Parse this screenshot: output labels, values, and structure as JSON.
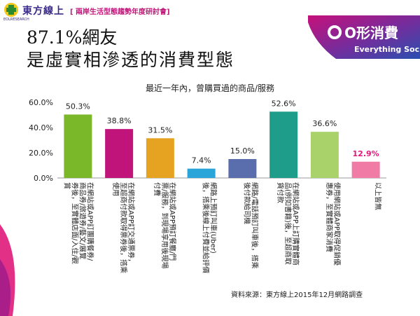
{
  "header": {
    "brand": "東方線上",
    "event": "[ 兩岸生活型態趨勢年度研討會]",
    "brand_small": "EOLRESEARCH"
  },
  "slide": {
    "title_line1": "87.1%網友",
    "title_line2": "是虛實相滲透的消費型態",
    "badge_main": "O形消費",
    "badge_sub": "Everything Social",
    "source": "資料來源：東方線上2015年12月網路調查"
  },
  "colors": {
    "accent_pink": "#e0197a",
    "brand_purple": "#3a2a8a",
    "highlight_label": "#e0197a"
  },
  "chart_data": {
    "type": "bar",
    "title": "最近一年內，曾購買過的商品/服務",
    "categories": [
      "在網站或APP訂團購餐券/商品券/旅遊券/藝文/展覽券後，至實體店面/入住/觀賞",
      "在網站或APP訂交通票券，至超商付款取得票券後，搭乘使用",
      "在網站或APP預訂餐廳/門票/服務，到現場享用後現場付費",
      "網路上預訂叫車(Uber)後，搭乘後線上付費並給評價",
      "網路/電話預訂叫車後，搭乘後付款給司機",
      "在網站或APP上訂購實體商品(例如書籍)後，至超商取貨付款",
      "使用網站或APP取得促銷優惠券，至實體商家消費",
      "以上皆無"
    ],
    "values": [
      50.3,
      38.8,
      31.5,
      7.4,
      15.0,
      52.6,
      36.6,
      12.9
    ],
    "data_labels": [
      "50.3%",
      "38.8%",
      "31.5%",
      "7.4%",
      "15.0%",
      "52.6%",
      "36.6%",
      "12.9%"
    ],
    "bar_colors": [
      "#7ab829",
      "#c0147a",
      "#e6a321",
      "#2aa5d9",
      "#5a6ead",
      "#1e9e8a",
      "#a9d26a",
      "#f07ca6"
    ],
    "highlight_index": 7,
    "ylim": [
      0,
      60
    ],
    "yticks": [
      0,
      20,
      40,
      60
    ],
    "ytick_labels": [
      "0.0%",
      "20.0%",
      "40.0%",
      "60.0%"
    ],
    "xlabel": "",
    "ylabel": "",
    "grid": false,
    "legend": "none"
  }
}
